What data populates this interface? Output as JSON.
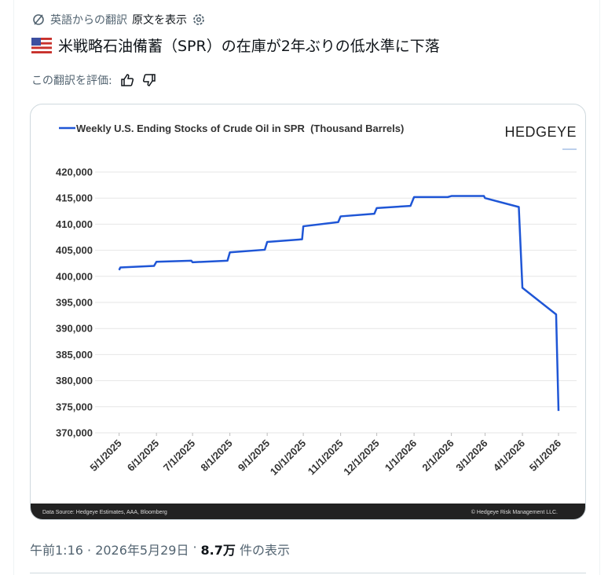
{
  "header": {
    "translated_from": "英語からの翻訳",
    "show_original": "原文を表示"
  },
  "post": {
    "text": "米戦略石油備蓄（SPR）の在庫が2年ぶりの低水準に下落",
    "rate_translation": "この翻訳を評価:",
    "timestamp": "午前1:16 · 2026年5月29日",
    "separator": "·",
    "views_count": "8.7万",
    "views_label": "件の表示"
  },
  "chart_data": {
    "type": "line",
    "brand": "HEDGEYE",
    "source": "Data Source: Hedgeye Estimates, AAA, Bloomberg",
    "copyright": "© Hedgeye Risk Management LLC.",
    "grid": true,
    "series": [
      {
        "name": "Weekly U.S. Ending Stocks of Crude Oil in SPR  (Thousand Barrels)",
        "color": "#1f56d6",
        "x": [
          "2025-05-01",
          "2025-05-02",
          "2025-05-30",
          "2025-06-01",
          "2025-06-30",
          "2025-07-01",
          "2025-07-30",
          "2025-08-01",
          "2025-08-30",
          "2025-09-01",
          "2025-09-30",
          "2025-10-01",
          "2025-10-30",
          "2025-11-01",
          "2025-11-29",
          "2025-12-01",
          "2025-12-29",
          "2026-01-01",
          "2026-01-29",
          "2026-02-01",
          "2026-02-28",
          "2026-03-01",
          "2026-03-29",
          "2026-04-01",
          "2026-04-29",
          "2026-05-01"
        ],
        "values": [
          401200,
          401700,
          402000,
          402800,
          403000,
          402700,
          403000,
          404600,
          405100,
          406600,
          407100,
          409600,
          410400,
          411500,
          412000,
          413100,
          413500,
          415200,
          415200,
          415400,
          415400,
          415000,
          413300,
          397800,
          392700,
          374200
        ]
      }
    ],
    "xlim": [
      "2025-04-11",
      "2026-05-16"
    ],
    "xticks": [
      {
        "value": "2025-05-01",
        "label": "5/1/2025"
      },
      {
        "value": "2025-06-01",
        "label": "6/1/2025"
      },
      {
        "value": "2025-07-01",
        "label": "7/1/2025"
      },
      {
        "value": "2025-08-01",
        "label": "8/1/2025"
      },
      {
        "value": "2025-09-01",
        "label": "9/1/2025"
      },
      {
        "value": "2025-10-01",
        "label": "10/1/2025"
      },
      {
        "value": "2025-11-01",
        "label": "11/1/2025"
      },
      {
        "value": "2025-12-01",
        "label": "12/1/2025"
      },
      {
        "value": "2026-01-01",
        "label": "1/1/2026"
      },
      {
        "value": "2026-02-01",
        "label": "2/1/2026"
      },
      {
        "value": "2026-03-01",
        "label": "3/1/2026"
      },
      {
        "value": "2026-04-01",
        "label": "4/1/2026"
      },
      {
        "value": "2026-05-01",
        "label": "5/1/2026"
      }
    ],
    "ylim": [
      370000,
      420000
    ],
    "yticks": [
      {
        "value": 370000,
        "label": "370,000"
      },
      {
        "value": 375000,
        "label": "375,000"
      },
      {
        "value": 380000,
        "label": "380,000"
      },
      {
        "value": 385000,
        "label": "385,000"
      },
      {
        "value": 390000,
        "label": "390,000"
      },
      {
        "value": 395000,
        "label": "395,000"
      },
      {
        "value": 400000,
        "label": "400,000"
      },
      {
        "value": 405000,
        "label": "405,000"
      },
      {
        "value": 410000,
        "label": "410,000"
      },
      {
        "value": 415000,
        "label": "415,000"
      },
      {
        "value": 420000,
        "label": "420,000"
      }
    ]
  }
}
